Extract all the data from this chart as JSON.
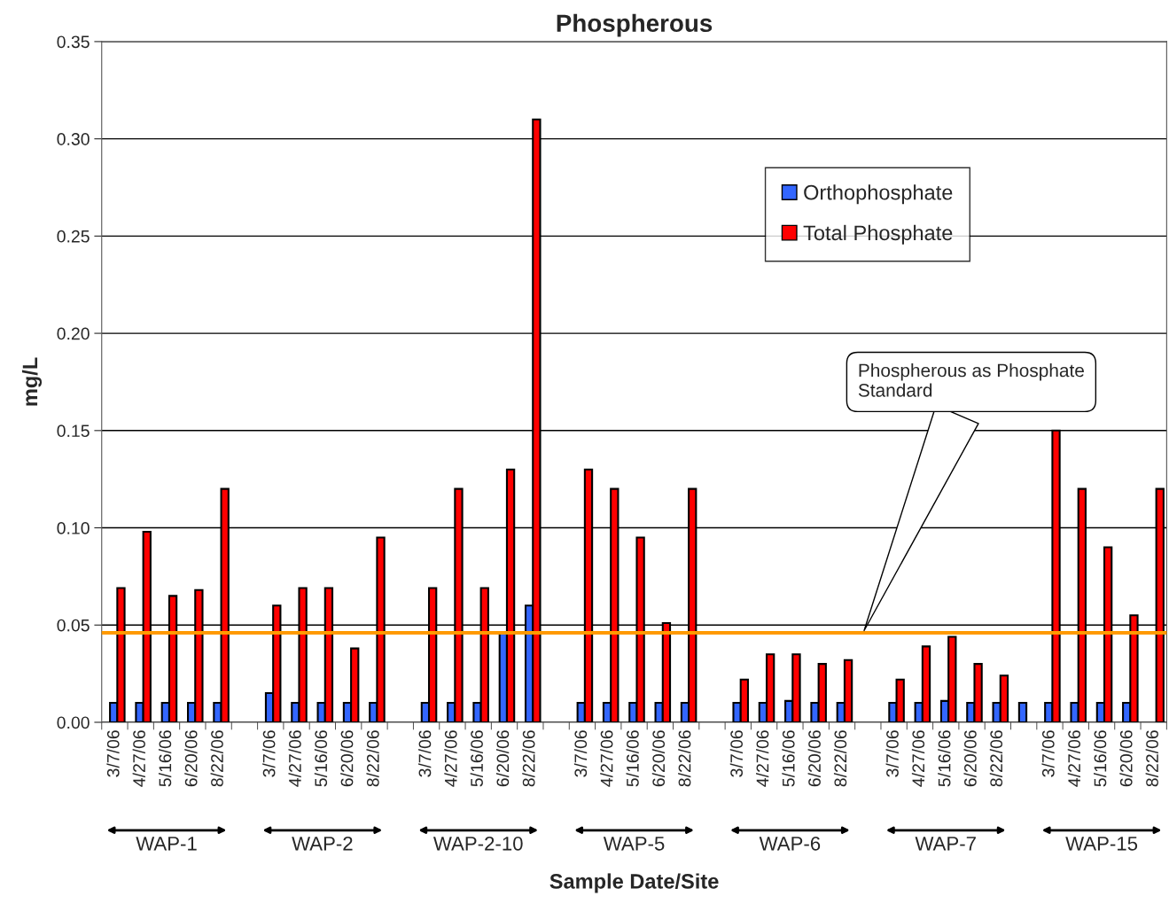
{
  "chart_data": {
    "type": "bar",
    "title": "Phospherous",
    "xlabel": "Sample Date/Site",
    "ylabel": "mg/L",
    "categories": [
      "3/7/06",
      "4/27/06",
      "5/16/06",
      "6/20/06",
      "8/22/06",
      null,
      "3/7/06",
      "4/27/06",
      "5/16/06",
      "6/20/06",
      "8/22/06",
      null,
      "3/7/06",
      "4/27/06",
      "5/16/06",
      "6/20/06",
      "8/22/06",
      null,
      "3/7/06",
      "4/27/06",
      "5/16/06",
      "6/20/06",
      "8/22/06",
      null,
      "3/7/06",
      "4/27/06",
      "5/16/06",
      "6/20/06",
      "8/22/06",
      null,
      "3/7/06",
      "4/27/06",
      "5/16/06",
      "6/20/06",
      "8/22/06",
      null,
      "3/7/06",
      "4/27/06",
      "5/16/06",
      "6/20/06",
      "8/22/06"
    ],
    "series": [
      {
        "name": "Orthophosphate",
        "color": "#3366ff",
        "values": [
          0.01,
          0.01,
          0.01,
          0.01,
          0.01,
          null,
          0.015,
          0.01,
          0.01,
          0.01,
          0.01,
          null,
          0.01,
          0.01,
          0.01,
          0.046,
          0.06,
          null,
          0.01,
          0.01,
          0.01,
          0.01,
          0.01,
          null,
          0.01,
          0.01,
          0.011,
          0.01,
          0.01,
          null,
          0.01,
          0.01,
          0.011,
          0.01,
          0.01,
          0.01,
          0.01,
          0.01,
          0.01,
          0.01,
          null
        ]
      },
      {
        "name": "Total Phosphate",
        "color": "#ff0000",
        "values": [
          0.069,
          0.098,
          0.065,
          0.068,
          0.12,
          null,
          0.06,
          0.069,
          0.069,
          0.038,
          0.095,
          null,
          0.069,
          0.12,
          0.069,
          0.13,
          0.31,
          null,
          0.13,
          0.12,
          0.095,
          0.051,
          0.12,
          null,
          0.022,
          0.035,
          0.035,
          0.03,
          0.032,
          null,
          0.022,
          0.039,
          0.044,
          0.03,
          0.024,
          null,
          0.15,
          0.12,
          0.09,
          0.055,
          0.12
        ]
      }
    ],
    "ylim": [
      0,
      0.35
    ],
    "yticks": [
      {
        "value": 0,
        "label": "0.00"
      },
      {
        "value": 0.05,
        "label": "0.05"
      },
      {
        "value": 0.1,
        "label": "0.10"
      },
      {
        "value": 0.15,
        "label": "0.15"
      },
      {
        "value": 0.2,
        "label": "0.20"
      },
      {
        "value": 0.25,
        "label": "0.25"
      },
      {
        "value": 0.3,
        "label": "0.30"
      },
      {
        "value": 0.35,
        "label": "0.35"
      }
    ],
    "grid": "y",
    "legend": "top right",
    "ref_lines": [
      {
        "axis": "y",
        "value": 0.046,
        "color": "#ff9900"
      }
    ],
    "annotations": [
      "WAP-1",
      "WAP-2",
      "WAP-2-10",
      "WAP-5",
      "WAP-6",
      "WAP-7",
      "WAP-15",
      "Phospherous as Phosphate\nStandard"
    ]
  }
}
